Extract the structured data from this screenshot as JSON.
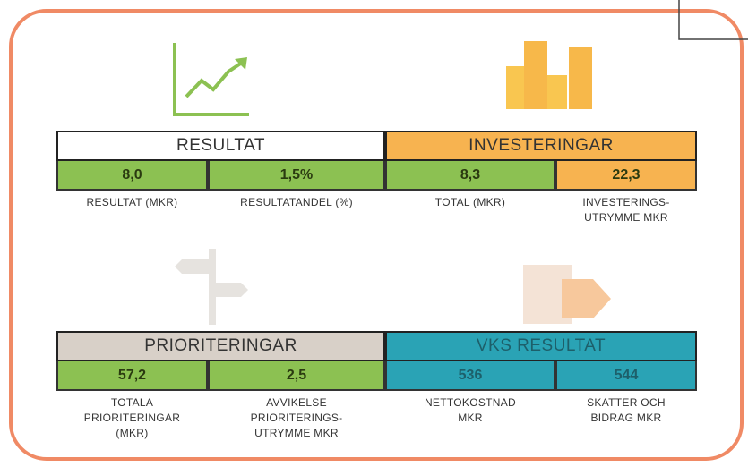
{
  "panels": [
    {
      "title": "RESULTAT",
      "metrics": [
        {
          "value": "8,0",
          "label": [
            "RESULTAT (MKR)"
          ]
        },
        {
          "value": "1,5%",
          "label": [
            "RESULTATANDEL (%)"
          ]
        }
      ]
    },
    {
      "title": "INVESTERINGAR",
      "metrics": [
        {
          "value": "8,3",
          "label": [
            "TOTAL (MKR)"
          ]
        },
        {
          "value": "22,3",
          "label": [
            "INVESTERINGS-",
            "UTRYMME MKR"
          ]
        }
      ]
    },
    {
      "title": "PRIORITERINGAR",
      "metrics": [
        {
          "value": "57,2",
          "label": [
            "TOTALA",
            "PRIORITERINGAR",
            "(MKR)"
          ]
        },
        {
          "value": "2,5",
          "label": [
            "AVVIKELSE",
            "PRIORITERINGS-",
            "UTRYMME MKR"
          ]
        }
      ]
    },
    {
      "title": "VKS RESULTAT",
      "metrics": [
        {
          "value": "536",
          "label": [
            "NETTOKOSTNAD",
            "MKR"
          ]
        },
        {
          "value": "544",
          "label": [
            "SKATTER OCH",
            "BIDRAG MKR"
          ]
        }
      ]
    }
  ]
}
